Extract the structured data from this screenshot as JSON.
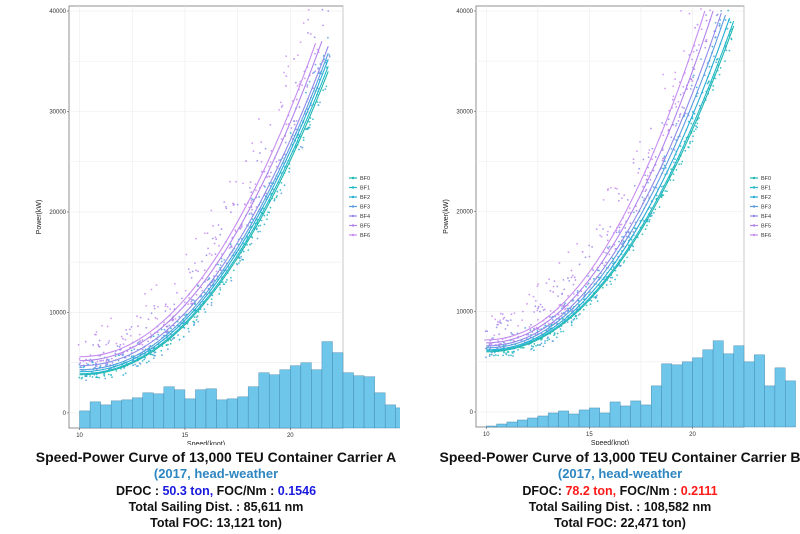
{
  "colors": {
    "bf0": "#1fb8b0",
    "bf1": "#22b8c8",
    "bf2": "#27acd6",
    "bf3": "#5b9de0",
    "bf4": "#8f8ae8",
    "bf5": "#b383ec",
    "bf6": "#c88df0",
    "histogram_fill": "#6ec6ea",
    "histogram_stroke": "#3a7fa5",
    "highlight_a": "#1a1adf",
    "highlight_b": "#ff1a1a",
    "subtitle": "#2e86c1"
  },
  "chart_data": [
    {
      "id": "carrier-a",
      "type": "scatter",
      "title": "Speed-Power Curve of 13,000 TEU Container Carrier A",
      "subtitle": "(2017, head-weather",
      "xlabel": "Speed(knot)",
      "ylabel": "Power(kW)",
      "xlim": [
        9.5,
        22.5
      ],
      "ylim": [
        -1500,
        40500
      ],
      "xticks": [
        "10",
        "15",
        "20"
      ],
      "yticks": [
        "0",
        "10000",
        "20000",
        "30000",
        "40000"
      ],
      "legend": [
        "BF0",
        "BF1",
        "BF2",
        "BF3",
        "BF4",
        "BF5",
        "BF6"
      ],
      "legend_position": "right",
      "speed_range": [
        10,
        21.8
      ],
      "curves": [
        {
          "name": "BF0",
          "x0": 10,
          "y0": 3800,
          "x1": 21.8,
          "y1": 34000
        },
        {
          "name": "BF1",
          "x0": 10,
          "y0": 3900,
          "x1": 21.8,
          "y1": 34500
        },
        {
          "name": "BF2",
          "x0": 10,
          "y0": 4100,
          "x1": 21.8,
          "y1": 35200
        },
        {
          "name": "BF3",
          "x0": 10,
          "y0": 4300,
          "x1": 21.8,
          "y1": 35800
        },
        {
          "name": "BF4",
          "x0": 10,
          "y0": 4700,
          "x1": 21.8,
          "y1": 36500
        },
        {
          "name": "BF5",
          "x0": 10,
          "y0": 5200,
          "x1": 21.5,
          "y1": 37000
        },
        {
          "name": "BF6",
          "x0": 10,
          "y0": 5600,
          "x1": 21.2,
          "y1": 36800
        }
      ],
      "histogram": {
        "bin_start": 10,
        "bin_width": 0.5,
        "heights": [
          1700,
          2600,
          2300,
          2700,
          2800,
          3000,
          3500,
          3400,
          4100,
          3800,
          2900,
          3800,
          3900,
          2800,
          2900,
          3100,
          4100,
          5500,
          5300,
          5800,
          6200,
          6500,
          5800,
          8600,
          7500,
          5500,
          5200,
          5100,
          3500,
          2300,
          2000,
          1100,
          400
        ]
      },
      "caption": {
        "title": "Speed-Power Curve of 13,000 TEU Container Carrier A",
        "subtitle": "(2017, head-weather",
        "dfoc_label": "DFOC : ",
        "dfoc_value": "50.3 ton,",
        "focnm_label": " FOC/Nm : ",
        "focnm_value": "0.1546",
        "sailing": "Total Sailing Dist. : 85,611 nm",
        "total_foc": "Total FOC: 13,121 ton)"
      }
    },
    {
      "id": "carrier-b",
      "type": "scatter",
      "title": "Speed-Power Curve of 13,000 TEU Container Carrier B",
      "subtitle": "(2017, head-weather",
      "xlabel": "Speed(knot)",
      "ylabel": "Power(kW)",
      "xlim": [
        9.5,
        22.5
      ],
      "ylim": [
        -1500,
        40500
      ],
      "xticks": [
        "10",
        "15",
        "20"
      ],
      "yticks": [
        "0",
        "10000",
        "20000",
        "30000",
        "40000"
      ],
      "legend": [
        "BF0",
        "BF1",
        "BF2",
        "BF3",
        "BF4",
        "BF5",
        "BF6"
      ],
      "legend_position": "right",
      "speed_range": [
        10,
        22
      ],
      "curves": [
        {
          "name": "BF0",
          "x0": 10,
          "y0": 6000,
          "x1": 22,
          "y1": 38500
        },
        {
          "name": "BF1",
          "x0": 10,
          "y0": 6100,
          "x1": 22,
          "y1": 39000
        },
        {
          "name": "BF2",
          "x0": 10,
          "y0": 6200,
          "x1": 21.8,
          "y1": 39300
        },
        {
          "name": "BF3",
          "x0": 10,
          "y0": 6400,
          "x1": 21.6,
          "y1": 39600
        },
        {
          "name": "BF4",
          "x0": 10,
          "y0": 6600,
          "x1": 21.4,
          "y1": 39800
        },
        {
          "name": "BF5",
          "x0": 10,
          "y0": 6900,
          "x1": 21.0,
          "y1": 40000
        },
        {
          "name": "BF6",
          "x0": 10,
          "y0": 7200,
          "x1": 20.6,
          "y1": 40000
        }
      ],
      "histogram": {
        "bin_start": 10,
        "bin_width": 0.5,
        "heights": [
          100,
          300,
          500,
          700,
          900,
          1100,
          1400,
          1600,
          1300,
          1700,
          1900,
          1400,
          2500,
          2100,
          2600,
          2200,
          4100,
          6300,
          6200,
          6500,
          6900,
          7700,
          8600,
          7300,
          8100,
          6500,
          7200,
          4100,
          5900,
          4600
        ]
      },
      "caption": {
        "title": "Speed-Power Curve of 13,000 TEU Container Carrier B",
        "subtitle": "(2017, head-weather",
        "dfoc_label": "DFOC: ",
        "dfoc_value": "78.2 ton,",
        "focnm_label": " FOC/Nm : ",
        "focnm_value": "0.2111",
        "sailing": "Total Sailing Dist. : 108,582 nm",
        "total_foc": "Total FOC: 22,471 ton)"
      }
    }
  ]
}
